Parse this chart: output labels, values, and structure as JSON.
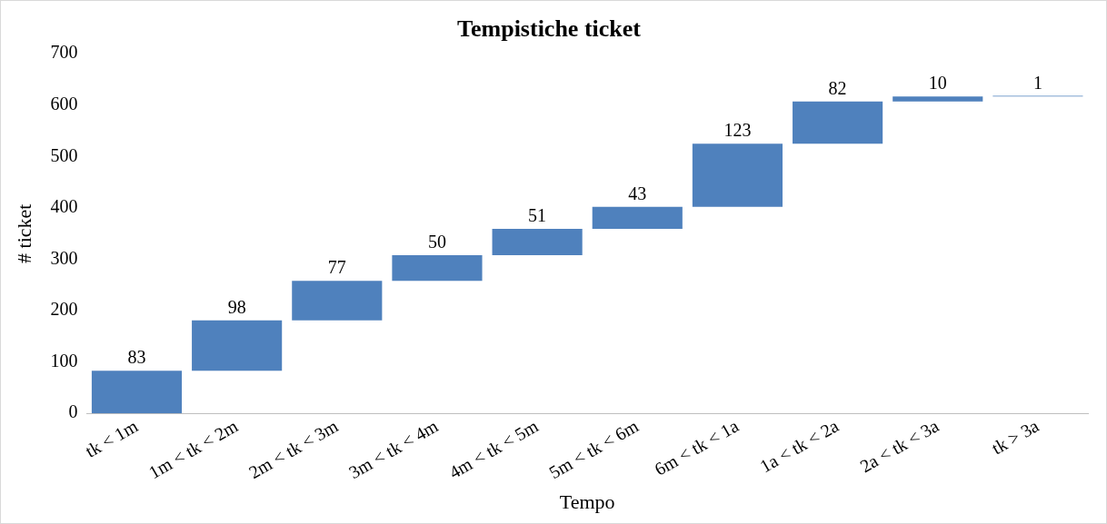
{
  "chart_data": {
    "type": "bar",
    "title": "Tempistiche ticket",
    "xlabel": "Tempo",
    "ylabel": "# ticket",
    "categories": [
      "tk < 1m",
      "1m < tk < 2m",
      "2m < tk < 3m",
      "3m < tk < 4m",
      "4m < tk < 5m",
      "5m < tk < 6m",
      "6m < tk < 1a",
      "1a < tk < 2a",
      "2a < tk < 3a",
      "tk > 3a"
    ],
    "values": [
      83,
      98,
      77,
      50,
      51,
      43,
      123,
      82,
      10,
      1
    ],
    "base": [
      0,
      83,
      181,
      258,
      308,
      359,
      402,
      525,
      607,
      617
    ],
    "color": "#4f81bd",
    "ylim": [
      0,
      700
    ],
    "yticks": [
      0,
      100,
      200,
      300,
      400,
      500,
      600,
      700
    ],
    "grid": false,
    "legend": false,
    "data_labels": true
  }
}
